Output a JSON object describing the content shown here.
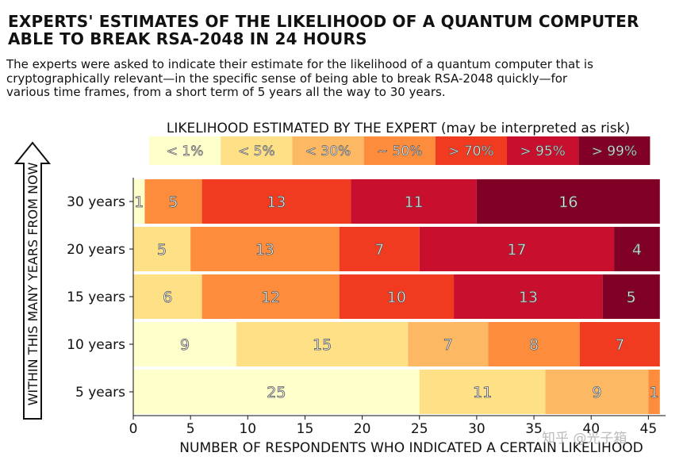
{
  "header": {
    "title_line1": "EXPERTS' ESTIMATES OF THE LIKELIHOOD OF A QUANTUM COMPUTER",
    "title_line2": "ABLE TO BREAK RSA-2048 IN 24 HOURS",
    "subtitle_line1": "The experts were asked to indicate their estimate for the likelihood of a quantum computer that is",
    "subtitle_line2": "cryptographically relevant—in the specific sense of being able to break RSA-2048 quickly—for",
    "subtitle_line3": "various time frames, from a short term of 5 years all the way to 30 years."
  },
  "watermark": "知乎 @光子箱",
  "chart_data": {
    "type": "bar",
    "orientation": "horizontal",
    "stacked": true,
    "legend_title": "LIKELIHOOD ESTIMATED BY THE EXPERT (may be interpreted as risk)",
    "legend_placement": "top",
    "xlabel": "NUMBER OF RESPONDENTS WHO INDICATED A CERTAIN LIKELIHOOD",
    "ylabel": "WITHIN THIS MANY YEARS FROM NOW",
    "xlim": [
      0,
      46.5
    ],
    "xticks": [
      0,
      5,
      10,
      15,
      20,
      25,
      30,
      35,
      40,
      45
    ],
    "categories": [
      "30 years",
      "20 years",
      "15 years",
      "10 years",
      "5 years"
    ],
    "series": [
      {
        "name": "< 1%",
        "color": "#ffffcc",
        "values": [
          1,
          0,
          0,
          9,
          25
        ]
      },
      {
        "name": "< 5%",
        "color": "#fee087",
        "values": [
          0,
          5,
          6,
          15,
          11
        ]
      },
      {
        "name": "< 30%",
        "color": "#fdb863",
        "values": [
          0,
          0,
          0,
          7,
          9
        ]
      },
      {
        "name": "~ 50%",
        "color": "#fd8d3c",
        "values": [
          5,
          13,
          12,
          8,
          1
        ]
      },
      {
        "name": "> 70%",
        "color": "#f03b20",
        "values": [
          13,
          7,
          10,
          7,
          0
        ]
      },
      {
        "name": "> 95%",
        "color": "#c8102e",
        "values": [
          11,
          17,
          13,
          0,
          0
        ]
      },
      {
        "name": "> 99%",
        "color": "#800026",
        "values": [
          16,
          4,
          5,
          0,
          0
        ]
      }
    ],
    "grid": false
  }
}
